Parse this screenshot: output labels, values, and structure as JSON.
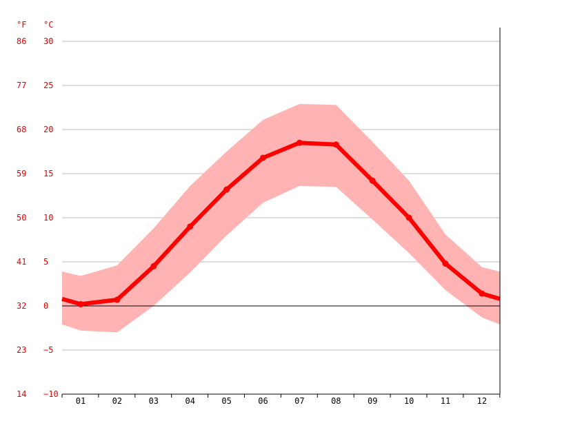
{
  "chart_data": {
    "type": "line",
    "title": "",
    "left_axis_unit": "°F",
    "right_axis_unit": "°C",
    "categories": [
      "01",
      "02",
      "03",
      "04",
      "05",
      "06",
      "07",
      "08",
      "09",
      "10",
      "11",
      "12"
    ],
    "y_celsius_ticks": [
      30,
      25,
      20,
      15,
      10,
      5,
      0,
      -5,
      -10
    ],
    "y_celsius_tick_labels": [
      "30",
      "25",
      "20",
      "15",
      "10",
      "5",
      "0",
      "−5",
      "−10"
    ],
    "y_fahrenheit_tick_labels": [
      "86",
      "77",
      "68",
      "59",
      "50",
      "41",
      "32",
      "23",
      "14"
    ],
    "ylim": [
      -10,
      30
    ],
    "grid": true,
    "series": [
      {
        "values": [
          0.2,
          0.7,
          4.5,
          9.0,
          13.2,
          16.8,
          18.5,
          18.3,
          14.2,
          10.0,
          4.8,
          1.4
        ],
        "x_edge_values": {
          "start": 0.8,
          "end": 0.8
        }
      }
    ],
    "band": {
      "upper": [
        3.4,
        4.6,
        8.8,
        13.6,
        17.5,
        21.1,
        22.9,
        22.8,
        18.6,
        14.2,
        8.1,
        4.4
      ],
      "lower": [
        -2.8,
        -3.0,
        0.0,
        3.8,
        8.0,
        11.7,
        13.6,
        13.5,
        9.8,
        6.0,
        1.8,
        -1.3
      ],
      "upper_edges": {
        "start": 3.9,
        "end": 3.9
      },
      "lower_edges": {
        "start": -2.1,
        "end": -2.1
      }
    },
    "colors": {
      "line": "#ff0000",
      "band": "#ffb3b3",
      "axis_labels": "#e60000",
      "grid": "#c0c0c0",
      "zero_line": "#000000"
    }
  }
}
